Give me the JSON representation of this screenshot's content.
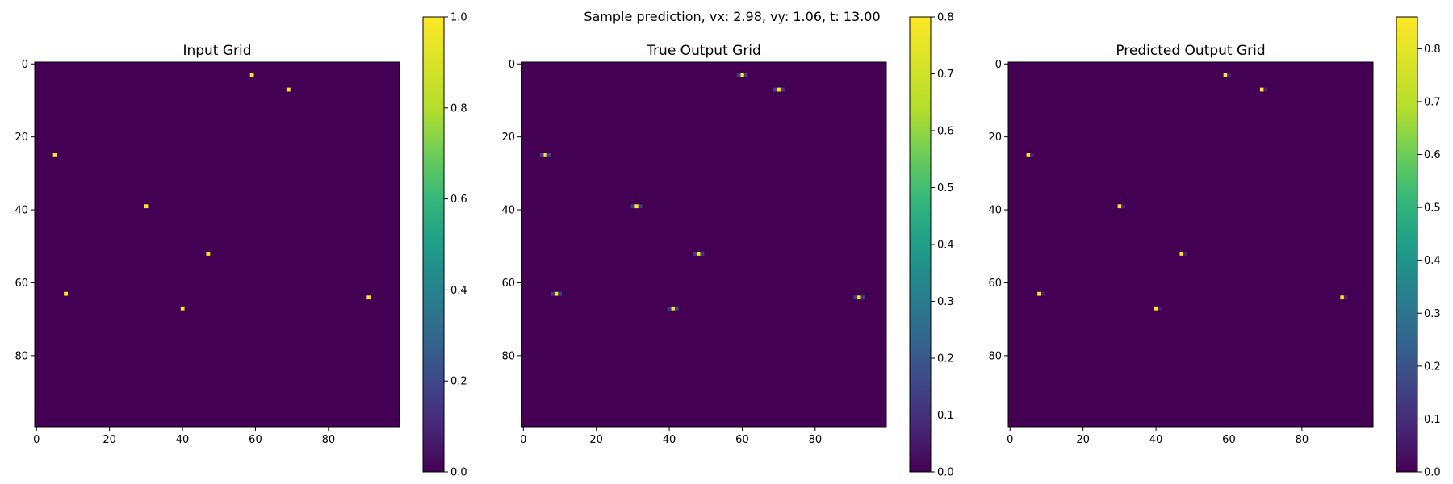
{
  "suptitle": "Sample prediction, vx: 2.98, vy: 1.06, t: 13.00",
  "colormap": "viridis",
  "background_color": "#440154",
  "chart_data": [
    {
      "type": "heatmap",
      "title": "Input Grid",
      "grid_size": [
        100,
        100
      ],
      "xticks": [
        0,
        20,
        40,
        60,
        80
      ],
      "yticks": [
        0,
        20,
        40,
        60,
        80
      ],
      "colorbar": {
        "min": 0.0,
        "max": 1.0,
        "ticks": [
          0.0,
          0.2,
          0.4,
          0.6,
          0.8,
          1.0
        ],
        "tick_labels": [
          "0.0",
          "0.2",
          "0.4",
          "0.6",
          "0.8",
          "1.0"
        ]
      },
      "points": [
        {
          "x": 59,
          "y": 3,
          "value": 1.0
        },
        {
          "x": 69,
          "y": 7,
          "value": 1.0
        },
        {
          "x": 5,
          "y": 25,
          "value": 1.0
        },
        {
          "x": 30,
          "y": 39,
          "value": 1.0
        },
        {
          "x": 47,
          "y": 52,
          "value": 1.0
        },
        {
          "x": 8,
          "y": 63,
          "value": 1.0
        },
        {
          "x": 91,
          "y": 64,
          "value": 1.0
        },
        {
          "x": 40,
          "y": 67,
          "value": 1.0
        }
      ]
    },
    {
      "type": "heatmap",
      "title": "True Output Grid",
      "grid_size": [
        100,
        100
      ],
      "xticks": [
        0,
        20,
        40,
        60,
        80
      ],
      "yticks": [
        0,
        20,
        40,
        60,
        80
      ],
      "colorbar": {
        "min": 0.0,
        "max": 0.8,
        "ticks": [
          0.0,
          0.1,
          0.2,
          0.3,
          0.4,
          0.5,
          0.6,
          0.7,
          0.8
        ],
        "tick_labels": [
          "0.0",
          "0.1",
          "0.2",
          "0.3",
          "0.4",
          "0.5",
          "0.6",
          "0.7",
          "0.8"
        ]
      },
      "points": [
        {
          "x": 60,
          "y": 3,
          "value": 0.8
        },
        {
          "x": 59,
          "y": 3,
          "value": 0.15
        },
        {
          "x": 61,
          "y": 3,
          "value": 0.15
        },
        {
          "x": 70,
          "y": 7,
          "value": 0.8
        },
        {
          "x": 69,
          "y": 7,
          "value": 0.15
        },
        {
          "x": 71,
          "y": 7,
          "value": 0.15
        },
        {
          "x": 6,
          "y": 25,
          "value": 0.8
        },
        {
          "x": 5,
          "y": 25,
          "value": 0.15
        },
        {
          "x": 7,
          "y": 25,
          "value": 0.15
        },
        {
          "x": 31,
          "y": 39,
          "value": 0.8
        },
        {
          "x": 30,
          "y": 39,
          "value": 0.15
        },
        {
          "x": 32,
          "y": 39,
          "value": 0.15
        },
        {
          "x": 48,
          "y": 52,
          "value": 0.8
        },
        {
          "x": 47,
          "y": 52,
          "value": 0.15
        },
        {
          "x": 49,
          "y": 52,
          "value": 0.15
        },
        {
          "x": 9,
          "y": 63,
          "value": 0.8
        },
        {
          "x": 8,
          "y": 63,
          "value": 0.15
        },
        {
          "x": 10,
          "y": 63,
          "value": 0.15
        },
        {
          "x": 92,
          "y": 64,
          "value": 0.8
        },
        {
          "x": 91,
          "y": 64,
          "value": 0.15
        },
        {
          "x": 93,
          "y": 64,
          "value": 0.15
        },
        {
          "x": 41,
          "y": 67,
          "value": 0.8
        },
        {
          "x": 40,
          "y": 67,
          "value": 0.15
        },
        {
          "x": 42,
          "y": 67,
          "value": 0.15
        }
      ]
    },
    {
      "type": "heatmap",
      "title": "Predicted Output Grid",
      "grid_size": [
        100,
        100
      ],
      "xticks": [
        0,
        20,
        40,
        60,
        80
      ],
      "yticks": [
        0,
        20,
        40,
        60,
        80
      ],
      "colorbar": {
        "min": 0.0,
        "max": 0.86,
        "ticks": [
          0.0,
          0.1,
          0.2,
          0.3,
          0.4,
          0.5,
          0.6,
          0.7,
          0.8
        ],
        "tick_labels": [
          "0.0",
          "0.1",
          "0.2",
          "0.3",
          "0.4",
          "0.5",
          "0.6",
          "0.7",
          "0.8"
        ]
      },
      "points": [
        {
          "x": 59,
          "y": 3,
          "value": 0.86
        },
        {
          "x": 60,
          "y": 3,
          "value": 0.08
        },
        {
          "x": 69,
          "y": 7,
          "value": 0.86
        },
        {
          "x": 70,
          "y": 7,
          "value": 0.08
        },
        {
          "x": 5,
          "y": 25,
          "value": 0.86
        },
        {
          "x": 6,
          "y": 25,
          "value": 0.08
        },
        {
          "x": 30,
          "y": 39,
          "value": 0.86
        },
        {
          "x": 31,
          "y": 39,
          "value": 0.08
        },
        {
          "x": 47,
          "y": 52,
          "value": 0.86
        },
        {
          "x": 48,
          "y": 52,
          "value": 0.08
        },
        {
          "x": 8,
          "y": 63,
          "value": 0.86
        },
        {
          "x": 9,
          "y": 63,
          "value": 0.08
        },
        {
          "x": 91,
          "y": 64,
          "value": 0.86
        },
        {
          "x": 92,
          "y": 64,
          "value": 0.08
        },
        {
          "x": 40,
          "y": 67,
          "value": 0.86
        },
        {
          "x": 41,
          "y": 67,
          "value": 0.08
        }
      ]
    }
  ]
}
